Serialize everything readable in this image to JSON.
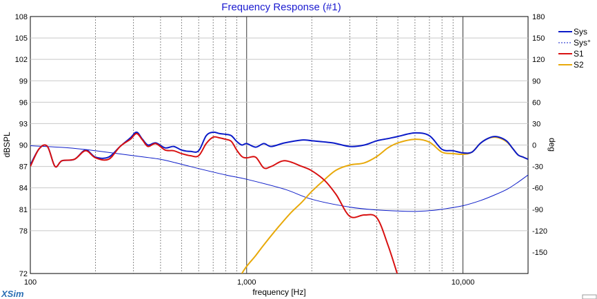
{
  "app": {
    "brand": "XSim"
  },
  "chart_data": {
    "type": "line",
    "title": "Frequency Response (#1)",
    "xlabel": "frequency [Hz]",
    "ylabel": "dBSPL",
    "y2label": "deg",
    "xscale": "log",
    "xlim": [
      100,
      20000
    ],
    "ylim": [
      72,
      108
    ],
    "y2lim": [
      -180,
      180
    ],
    "xticks": [
      100,
      1000,
      10000
    ],
    "xtick_labels": [
      "100",
      "1,000",
      "10,000"
    ],
    "yticks": [
      72,
      78,
      81,
      84,
      87,
      90,
      93,
      96,
      99,
      102,
      105,
      108
    ],
    "ytick_labels": [
      "72",
      "78",
      "81",
      "84",
      "87",
      "90",
      "93",
      "96",
      "99",
      "102",
      "105",
      "108"
    ],
    "y2ticks": [
      -150,
      -120,
      -90,
      -60,
      -30,
      0,
      30,
      60,
      90,
      120,
      150,
      180
    ],
    "y2tick_labels": [
      "-150",
      "-120",
      "-90",
      "-60",
      "-30",
      "0",
      "30",
      "60",
      "90",
      "120",
      "150",
      "180"
    ],
    "grid": true,
    "legend": "right",
    "series": [
      {
        "name": "Sys",
        "color": "#0a1ac8",
        "style": "solid",
        "axis": "left",
        "x": [
          100,
          110,
          120,
          130,
          140,
          160,
          180,
          200,
          230,
          260,
          290,
          310,
          330,
          350,
          380,
          420,
          460,
          500,
          550,
          600,
          650,
          700,
          750,
          800,
          850,
          900,
          950,
          1000,
          1100,
          1200,
          1300,
          1500,
          1800,
          2000,
          2500,
          3000,
          3500,
          4000,
          4500,
          5000,
          6000,
          7000,
          8000,
          9000,
          10000,
          11000,
          12000,
          13000,
          14000,
          15000,
          16000,
          17000,
          18000,
          19000,
          20000
        ],
        "y": [
          87.2,
          89.5,
          89.8,
          87.0,
          87.8,
          88.0,
          89.3,
          88.3,
          88.3,
          89.8,
          91.0,
          91.8,
          90.8,
          90.0,
          90.3,
          89.6,
          89.8,
          89.3,
          89.1,
          89.2,
          91.3,
          91.8,
          91.6,
          91.5,
          91.3,
          90.5,
          90.0,
          90.2,
          89.7,
          90.2,
          89.8,
          90.3,
          90.7,
          90.6,
          90.3,
          89.8,
          90.0,
          90.6,
          90.9,
          91.2,
          91.7,
          91.3,
          89.4,
          89.2,
          88.9,
          89.0,
          90.2,
          90.9,
          91.2,
          91.0,
          90.5,
          89.5,
          88.6,
          88.3,
          88.0
        ]
      },
      {
        "name": "Sys°",
        "color": "#0a1ac8",
        "style": "dashed",
        "axis": "right",
        "x": [
          100,
          150,
          200,
          300,
          400,
          500,
          600,
          800,
          1000,
          1500,
          2000,
          3000,
          4000,
          5000,
          6000,
          7000,
          8000,
          10000,
          12000,
          14000,
          16000,
          18000,
          20000
        ],
        "y": [
          -1,
          -4,
          -8,
          -15,
          -20,
          -27,
          -33,
          -42,
          -48,
          -62,
          -76,
          -87,
          -91,
          -92.5,
          -93,
          -92,
          -90,
          -85,
          -78,
          -70,
          -62,
          -52,
          -42
        ]
      },
      {
        "name": "S1",
        "color": "#d81010",
        "style": "solid",
        "axis": "left",
        "x": [
          100,
          110,
          120,
          130,
          140,
          160,
          180,
          200,
          230,
          260,
          290,
          310,
          330,
          350,
          380,
          420,
          460,
          500,
          550,
          600,
          650,
          700,
          750,
          800,
          850,
          900,
          950,
          1000,
          1100,
          1200,
          1300,
          1500,
          1800,
          2000,
          2300,
          2600,
          3000,
          3500,
          4000,
          4500,
          5000
        ],
        "y": [
          87.0,
          89.5,
          89.8,
          87.0,
          87.8,
          88.0,
          89.2,
          88.2,
          88.0,
          89.8,
          90.8,
          91.6,
          90.7,
          89.8,
          90.2,
          89.3,
          89.2,
          88.8,
          88.5,
          88.5,
          90.2,
          91.1,
          91.0,
          90.8,
          90.5,
          89.3,
          88.4,
          88.2,
          88.3,
          86.8,
          87.0,
          87.8,
          87.0,
          86.4,
          85.0,
          83.0,
          80.0,
          80.2,
          79.8,
          76.0,
          71.7
        ]
      },
      {
        "name": "S2",
        "color": "#e8a90a",
        "style": "solid",
        "axis": "left",
        "x": [
          950,
          1000,
          1100,
          1200,
          1400,
          1600,
          1800,
          2000,
          2300,
          2600,
          3000,
          3500,
          4000,
          4500,
          5000,
          6000,
          7000,
          8000,
          9000,
          10000,
          11000,
          12000,
          13000,
          14000,
          15000,
          16000,
          17000,
          18000,
          19000,
          20000
        ],
        "y": [
          72.0,
          73.0,
          74.5,
          76.0,
          78.5,
          80.5,
          82.0,
          83.5,
          85.2,
          86.5,
          87.2,
          87.5,
          88.4,
          89.6,
          90.3,
          90.8,
          90.4,
          89.0,
          88.8,
          88.7,
          89.0,
          90.2,
          90.9,
          91.1,
          90.9,
          90.4,
          89.5,
          88.6,
          88.3,
          88.0
        ]
      }
    ]
  }
}
